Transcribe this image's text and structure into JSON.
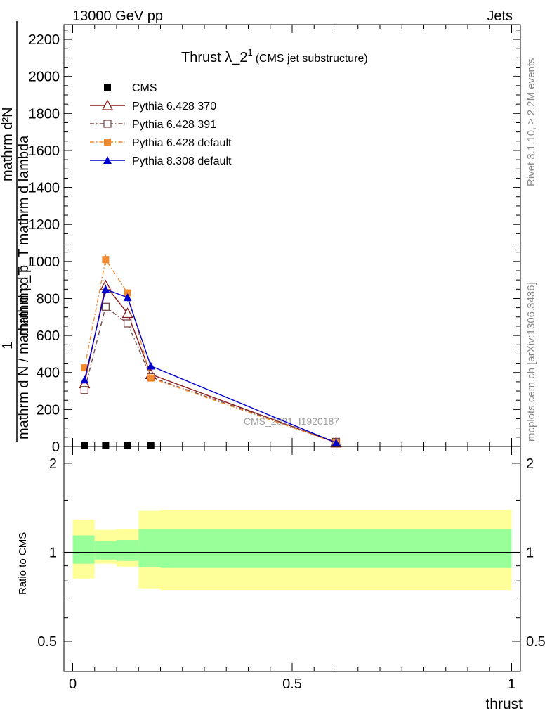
{
  "header": {
    "left": "13000 GeV pp",
    "right": "Jets"
  },
  "side_labels": {
    "rivet": "Rivet 3.1.10, ≥ 2.2M events",
    "mcplots": "mcplots.cern.ch [arXiv:1306.3436]"
  },
  "watermark": "CMS_2021_I1920187",
  "chart_data": [
    {
      "type": "line",
      "title_main": "Thrust λ_2",
      "title_sup": "1",
      "title_sub": "(CMS jet substructure)",
      "xlabel": "thrust",
      "ylabel_top": "mathrm d²N",
      "ylabel_mid": "mathrm d p_T mathrm d lambda",
      "ylabel_prefix": "1",
      "ylabel_bottom": "mathrm d N / mathrm d p_T",
      "xlim": [
        -0.02,
        1.02
      ],
      "ylim": [
        0,
        2280
      ],
      "y_ticks": [
        0,
        200,
        400,
        600,
        800,
        1000,
        1200,
        1400,
        1600,
        1800,
        2000,
        2200
      ],
      "y_tick_labels": [
        "0",
        "200",
        "400",
        "600",
        "800",
        "1000",
        "1200",
        "1400",
        "1600",
        "1800",
        "2000",
        "2200"
      ],
      "legend_position": "top-left",
      "series": [
        {
          "name": "CMS",
          "color": "#000000",
          "marker": "filled-square",
          "line": "none",
          "x": [
            0.027,
            0.075,
            0.125,
            0.178
          ],
          "y": [
            5,
            5,
            5,
            5
          ]
        },
        {
          "name": "Pythia 6.428 370",
          "color": "#8b1a1a",
          "marker": "open-triangle",
          "line": "solid",
          "x": [
            0.027,
            0.075,
            0.125,
            0.178,
            0.6
          ],
          "y": [
            340,
            870,
            720,
            390,
            20
          ],
          "err": [
            10,
            25,
            20,
            12,
            4
          ]
        },
        {
          "name": "Pythia 6.428 391",
          "color": "#7a4a4a",
          "marker": "open-square",
          "line": "dashdot",
          "x": [
            0.027,
            0.075,
            0.125,
            0.178,
            0.6
          ],
          "y": [
            305,
            755,
            665,
            375,
            25
          ],
          "err": [
            10,
            22,
            18,
            12,
            4
          ]
        },
        {
          "name": "Pythia 6.428 default",
          "color": "#f28a30",
          "marker": "filled-square",
          "line": "dashdot",
          "x": [
            0.027,
            0.075,
            0.125,
            0.178,
            0.6
          ],
          "y": [
            425,
            1010,
            830,
            370,
            20
          ],
          "err": [
            12,
            30,
            20,
            12,
            4
          ]
        },
        {
          "name": "Pythia 8.308 default",
          "color": "#0000cc",
          "marker": "filled-triangle",
          "line": "solid",
          "x": [
            0.027,
            0.075,
            0.125,
            0.178,
            0.6
          ],
          "y": [
            360,
            850,
            805,
            435,
            20
          ],
          "err": [
            10,
            25,
            20,
            12,
            4
          ]
        }
      ]
    },
    {
      "type": "area",
      "ylabel": "Ratio to CMS",
      "xlabel": "thrust",
      "xlim": [
        -0.02,
        1.02
      ],
      "ylim": [
        0.395,
        2.28
      ],
      "scale": "log",
      "y_ticks": [
        0.5,
        1,
        2
      ],
      "y_tick_labels": [
        "0.5",
        "1",
        "2"
      ],
      "x_ticks": [
        0,
        0.5,
        1
      ],
      "x_tick_labels": [
        "0",
        "0.5",
        "1"
      ],
      "bins": [
        {
          "x0": 0.0,
          "x1": 0.05,
          "inner": [
            0.915,
            1.14
          ],
          "outer": [
            0.815,
            1.29
          ]
        },
        {
          "x0": 0.05,
          "x1": 0.1,
          "inner": [
            0.945,
            1.09
          ],
          "outer": [
            0.915,
            1.19
          ]
        },
        {
          "x0": 0.1,
          "x1": 0.15,
          "inner": [
            0.935,
            1.1
          ],
          "outer": [
            0.895,
            1.2
          ]
        },
        {
          "x0": 0.15,
          "x1": 0.2,
          "inner": [
            0.89,
            1.2
          ],
          "outer": [
            0.755,
            1.38
          ]
        },
        {
          "x0": 0.2,
          "x1": 1.0,
          "inner": [
            0.885,
            1.2
          ],
          "outer": [
            0.745,
            1.39
          ]
        }
      ],
      "colors": {
        "inner": "#99ff99",
        "outer": "#ffff99"
      },
      "reference": 1
    }
  ]
}
